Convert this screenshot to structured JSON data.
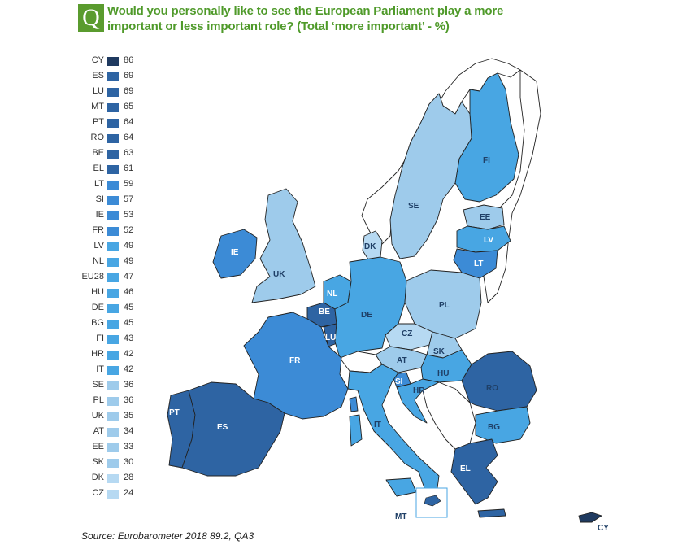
{
  "header": {
    "q_letter": "Q",
    "title": "Would you personally like to see the European Parliament play a more important or less important role? (Total ‘more important’ - %)"
  },
  "colors": {
    "c86": "#1f3a60",
    "c60_69": "#2e64a3",
    "c50_59": "#3c8bd6",
    "c40_49": "#48a6e3",
    "c30_39": "#9ecbeb",
    "c20_29": "#b6d9f2",
    "non_eu": "#ffffff"
  },
  "legend": [
    {
      "code": "CY",
      "value": "86"
    },
    {
      "code": "ES",
      "value": "69"
    },
    {
      "code": "LU",
      "value": "69"
    },
    {
      "code": "MT",
      "value": "65"
    },
    {
      "code": "PT",
      "value": "64"
    },
    {
      "code": "RO",
      "value": "64"
    },
    {
      "code": "BE",
      "value": "63"
    },
    {
      "code": "EL",
      "value": "61"
    },
    {
      "code": "LT",
      "value": "59"
    },
    {
      "code": "SI",
      "value": "57"
    },
    {
      "code": "IE",
      "value": "53"
    },
    {
      "code": "FR",
      "value": "52"
    },
    {
      "code": "LV",
      "value": "49"
    },
    {
      "code": "NL",
      "value": "49"
    },
    {
      "code": "EU28",
      "value": "47"
    },
    {
      "code": "HU",
      "value": "46"
    },
    {
      "code": "DE",
      "value": "45"
    },
    {
      "code": "BG",
      "value": "45"
    },
    {
      "code": "FI",
      "value": "43"
    },
    {
      "code": "HR",
      "value": "42"
    },
    {
      "code": "IT",
      "value": "42"
    },
    {
      "code": "SE",
      "value": "36"
    },
    {
      "code": "PL",
      "value": "36"
    },
    {
      "code": "UK",
      "value": "35"
    },
    {
      "code": "AT",
      "value": "34"
    },
    {
      "code": "EE",
      "value": "33"
    },
    {
      "code": "SK",
      "value": "30"
    },
    {
      "code": "DK",
      "value": "28"
    },
    {
      "code": "CZ",
      "value": "24"
    }
  ],
  "map_labels": {
    "FI": "FI",
    "SE": "SE",
    "EE": "EE",
    "LV": "LV",
    "LT": "LT",
    "DK": "DK",
    "IE": "IE",
    "UK": "UK",
    "NL": "NL",
    "BE": "BE",
    "LU": "LU",
    "DE": "DE",
    "PL": "PL",
    "CZ": "CZ",
    "SK": "SK",
    "AT": "AT",
    "HU": "HU",
    "RO": "RO",
    "FR": "FR",
    "SI": "SI",
    "HR": "HR",
    "BG": "BG",
    "IT": "IT",
    "PT": "PT",
    "ES": "ES",
    "EL": "EL",
    "MT": "MT",
    "CY": "CY"
  },
  "source": "Source: Eurobarometer 2018 89.2, QA3"
}
